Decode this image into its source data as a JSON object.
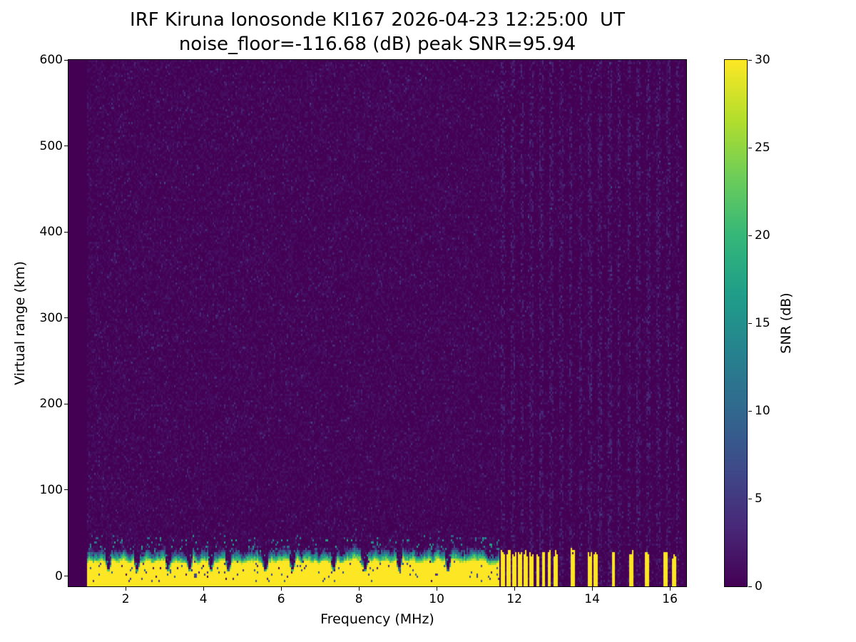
{
  "chart_data": {
    "type": "heatmap",
    "title": "IRF Kiruna Ionosonde KI167 2026-04-23 12:25:00  UT",
    "subtitle": "noise_floor=-116.68 (dB) peak SNR=95.94",
    "station": "IRF Kiruna Ionosonde KI167",
    "timestamp_ut": "2026-04-23 12:25:00",
    "noise_floor_db": -116.68,
    "peak_snr_db": 95.94,
    "xlabel": "Frequency (MHz)",
    "ylabel": "Virtual range (km)",
    "xlim": [
      0.53,
      16.42
    ],
    "ylim": [
      -12,
      600
    ],
    "xticks": [
      2,
      4,
      6,
      8,
      10,
      12,
      14,
      16
    ],
    "yticks": [
      0,
      100,
      200,
      300,
      400,
      500,
      600
    ],
    "grid": false,
    "colorbar": {
      "label": "SNR (dB)",
      "range": [
        0,
        30
      ],
      "ticks": [
        0,
        5,
        10,
        15,
        20,
        25,
        30
      ],
      "colormap": "viridis"
    },
    "colors": {
      "background": "#440154",
      "peak": "#fde725"
    },
    "features": {
      "sweep_freq_range_mhz": [
        1.0,
        16.36
      ],
      "background_snr_db": 0,
      "ground_echo": {
        "freq_range_mhz": [
          1.0,
          11.62
        ],
        "range_km": [
          -12,
          38
        ],
        "snr_db": 30
      },
      "band_notches_mhz": [
        1.55,
        2.3,
        3.1,
        3.65,
        4.2,
        4.65,
        5.6,
        6.3,
        7.35,
        8.15,
        9.05,
        10.3
      ],
      "pulsed_echo_columns_mhz": [
        11.7,
        11.85,
        12.0,
        12.15,
        12.3,
        12.45,
        12.6,
        12.75,
        12.9,
        13.05,
        13.5,
        13.95,
        14.1,
        14.55,
        15.0,
        15.4,
        15.9,
        16.1
      ],
      "pulsed_column_range_km": [
        -12,
        30
      ],
      "rfi_stripe_start_mhz": 11.7,
      "rfi_stripe_spacing_mhz": 0.25
    }
  }
}
